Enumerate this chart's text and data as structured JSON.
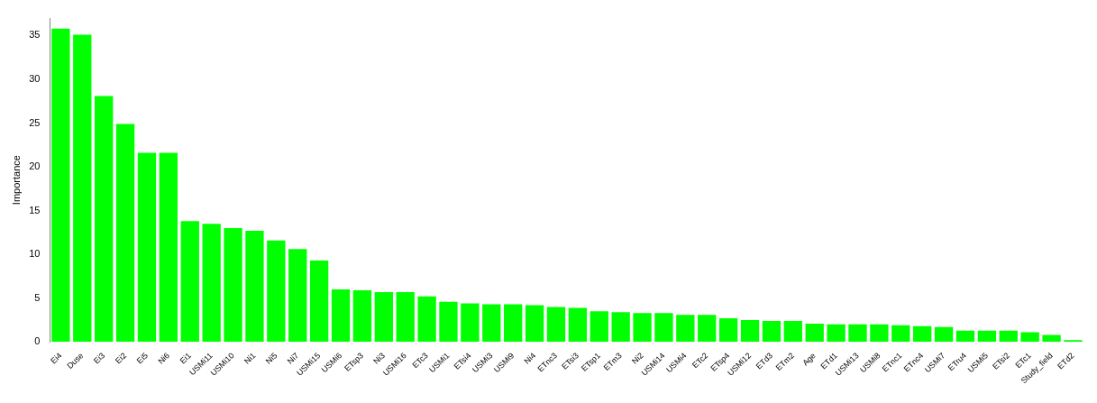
{
  "chart_data": {
    "type": "bar",
    "ylabel": "Importance",
    "categories": [
      "Ei4",
      "Duse",
      "Ei3",
      "Ei2",
      "Ei5",
      "Ni6",
      "Ei1",
      "USMi11",
      "USMi10",
      "Ni1",
      "Ni5",
      "Ni7",
      "USMi15",
      "USMi6",
      "ETsp3",
      "Ni3",
      "USMi16",
      "ETc3",
      "USMi1",
      "ETsi4",
      "USMi3",
      "USMi9",
      "Ni4",
      "ETnc3",
      "ETsi3",
      "ETsp1",
      "ETm3",
      "Ni2",
      "USMi14",
      "USMi4",
      "ETc2",
      "ETsp4",
      "USMi12",
      "ETd3",
      "ETm2",
      "Age",
      "ETd1",
      "USMi13",
      "USMi8",
      "ETnc1",
      "ETnc4",
      "USMi7",
      "ETru4",
      "USMi5",
      "ETsi2",
      "ETc1",
      "Study_field",
      "ETd2"
    ],
    "values": [
      35.8,
      35.1,
      28.1,
      24.9,
      21.6,
      21.6,
      13.8,
      13.5,
      13.0,
      12.7,
      11.6,
      10.6,
      9.3,
      6.0,
      5.9,
      5.7,
      5.7,
      5.2,
      4.6,
      4.4,
      4.3,
      4.3,
      4.2,
      4.0,
      3.9,
      3.5,
      3.4,
      3.3,
      3.3,
      3.1,
      3.1,
      2.7,
      2.5,
      2.4,
      2.4,
      2.1,
      2.0,
      2.0,
      2.0,
      1.9,
      1.8,
      1.7,
      1.3,
      1.3,
      1.3,
      1.1,
      0.8,
      0.2
    ],
    "color": "#00ff00",
    "ylim": [
      0,
      37
    ],
    "yticks": [
      0,
      5,
      10,
      15,
      20,
      25,
      30,
      35
    ],
    "grid": false,
    "legend": false
  }
}
